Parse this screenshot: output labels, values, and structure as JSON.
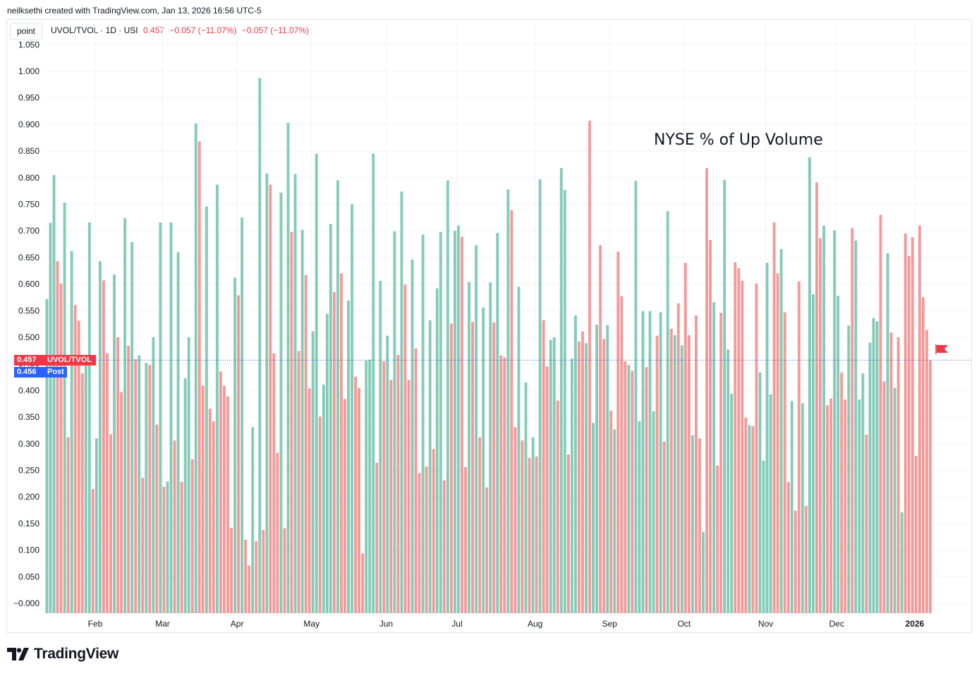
{
  "header": {
    "creator_line": "neilksethi created with TradingView.com, Jan 13, 2026 16:56 UTC-5"
  },
  "toolbar": {
    "mode_button": "point"
  },
  "legend": {
    "symbol": "UVOL/TVOL · 1D · USI",
    "last": "0.457",
    "change": "−0.057 (−11.07%)",
    "change2": "−0.057 (−11.07%)"
  },
  "tags": {
    "last_value": "0.457",
    "last_name": "UVOL/TVOL",
    "post_value": "0.456",
    "post_name": "Post"
  },
  "logo": {
    "text": "TradingView"
  },
  "colors": {
    "up": "#84cbb8",
    "down": "#f49a9a",
    "accent_red": "#f23645",
    "accent_blue": "#2962ff"
  },
  "chart_data": {
    "type": "bar",
    "title": "NYSE % of Up Volume",
    "ylim": [
      -0.012,
      1.055
    ],
    "yticks": [
      "1.050",
      "1.000",
      "0.950",
      "0.900",
      "0.850",
      "0.800",
      "0.750",
      "0.700",
      "0.650",
      "0.600",
      "0.550",
      "0.500",
      "0.450",
      "0.400",
      "0.350",
      "0.300",
      "0.250",
      "0.200",
      "0.150",
      "0.100",
      "0.050",
      "−0.000"
    ],
    "ytick_values": [
      1.05,
      1.0,
      0.95,
      0.9,
      0.85,
      0.8,
      0.75,
      0.7,
      0.65,
      0.6,
      0.55,
      0.5,
      0.45,
      0.4,
      0.35,
      0.3,
      0.25,
      0.2,
      0.15,
      0.1,
      0.05,
      0.0
    ],
    "months": [
      {
        "label": "Feb",
        "index": 14
      },
      {
        "label": "Mar",
        "index": 33
      },
      {
        "label": "Apr",
        "index": 54
      },
      {
        "label": "May",
        "index": 75
      },
      {
        "label": "Jun",
        "index": 96
      },
      {
        "label": "Jul",
        "index": 116
      },
      {
        "label": "Aug",
        "index": 138
      },
      {
        "label": "Sep",
        "index": 159
      },
      {
        "label": "Oct",
        "index": 180
      },
      {
        "label": "Nov",
        "index": 203
      },
      {
        "label": "Dec",
        "index": 223
      },
      {
        "label": "2026",
        "index": 245
      }
    ],
    "current_value": 0.457,
    "post_value": 0.456,
    "values": [
      0.572,
      0.715,
      0.805,
      0.643,
      0.601,
      0.753,
      0.312,
      0.662,
      0.561,
      0.531,
      0.432,
      0.447,
      0.716,
      0.215,
      0.31,
      0.643,
      0.607,
      0.47,
      0.318,
      0.618,
      0.5,
      0.397,
      0.724,
      0.484,
      0.679,
      0.459,
      0.466,
      0.236,
      0.452,
      0.448,
      0.5,
      0.336,
      0.716,
      0.219,
      0.229,
      0.716,
      0.306,
      0.66,
      0.228,
      0.423,
      0.5,
      0.271,
      0.902,
      0.868,
      0.409,
      0.746,
      0.366,
      0.342,
      0.787,
      0.436,
      0.409,
      0.389,
      0.142,
      0.612,
      0.579,
      0.725,
      0.12,
      0.071,
      0.331,
      0.117,
      0.987,
      0.138,
      0.808,
      0.787,
      0.47,
      0.283,
      0.772,
      0.141,
      0.903,
      0.698,
      0.807,
      0.474,
      0.702,
      0.617,
      0.404,
      0.511,
      0.845,
      0.351,
      0.411,
      0.544,
      0.713,
      0.585,
      0.795,
      0.62,
      0.384,
      0.569,
      0.75,
      0.426,
      0.405,
      0.094,
      0.456,
      0.458,
      0.845,
      0.264,
      0.606,
      0.455,
      0.503,
      0.42,
      0.699,
      0.467,
      0.774,
      0.599,
      0.42,
      0.646,
      0.479,
      0.245,
      0.693,
      0.257,
      0.532,
      0.29,
      0.592,
      0.698,
      0.231,
      0.795,
      0.526,
      0.7,
      0.71,
      0.689,
      0.256,
      0.604,
      0.529,
      0.673,
      0.312,
      0.556,
      0.218,
      0.603,
      0.528,
      0.696,
      0.466,
      0.462,
      0.778,
      0.739,
      0.331,
      0.595,
      0.306,
      0.415,
      0.273,
      0.312,
      0.276,
      0.797,
      0.532,
      0.445,
      0.495,
      0.5,
      0.381,
      0.818,
      0.777,
      0.28,
      0.46,
      0.541,
      0.492,
      0.511,
      0.489,
      0.907,
      0.339,
      0.524,
      0.673,
      0.497,
      0.523,
      0.362,
      0.327,
      0.661,
      0.577,
      0.455,
      0.448,
      0.437,
      0.794,
      0.342,
      0.549,
      0.444,
      0.549,
      0.361,
      0.503,
      0.547,
      0.304,
      0.737,
      0.516,
      0.504,
      0.564,
      0.485,
      0.64,
      0.504,
      0.316,
      0.541,
      0.31,
      0.134,
      0.818,
      0.683,
      0.566,
      0.259,
      0.546,
      0.796,
      0.477,
      0.394,
      0.641,
      0.63,
      0.606,
      0.349,
      0.335,
      0.333,
      0.601,
      0.434,
      0.268,
      0.64,
      0.393,
      0.716,
      0.62,
      0.666,
      0.547,
      0.228,
      0.38,
      0.174,
      0.605,
      0.376,
      0.183,
      0.838,
      0.581,
      0.791,
      0.686,
      0.71,
      0.372,
      0.385,
      0.701,
      0.578,
      0.434,
      0.383,
      0.522,
      0.705,
      0.682,
      0.383,
      0.432,
      0.317,
      0.49,
      0.536,
      0.53,
      0.73,
      0.417,
      0.658,
      0.509,
      0.405,
      0.5,
      0.171,
      0.695,
      0.653,
      0.688,
      0.277,
      0.71,
      0.575,
      0.514,
      0.457
    ],
    "colors": [
      "up",
      "up",
      "up",
      "down",
      "down",
      "up",
      "down",
      "up",
      "down",
      "down",
      "down",
      "up",
      "up",
      "down",
      "up",
      "up",
      "down",
      "down",
      "down",
      "up",
      "down",
      "down",
      "up",
      "down",
      "up",
      "down",
      "up",
      "down",
      "up",
      "down",
      "up",
      "down",
      "up",
      "down",
      "up",
      "up",
      "down",
      "up",
      "down",
      "up",
      "up",
      "down",
      "up",
      "down",
      "down",
      "up",
      "down",
      "down",
      "up",
      "down",
      "down",
      "down",
      "down",
      "up",
      "down",
      "up",
      "down",
      "down",
      "up",
      "down",
      "up",
      "down",
      "up",
      "down",
      "down",
      "down",
      "up",
      "down",
      "up",
      "down",
      "up",
      "down",
      "up",
      "down",
      "down",
      "up",
      "up",
      "down",
      "up",
      "up",
      "up",
      "down",
      "up",
      "down",
      "down",
      "up",
      "up",
      "down",
      "down",
      "down",
      "up",
      "up",
      "up",
      "down",
      "up",
      "down",
      "up",
      "down",
      "up",
      "down",
      "up",
      "down",
      "down",
      "up",
      "down",
      "down",
      "up",
      "down",
      "up",
      "down",
      "up",
      "up",
      "down",
      "up",
      "down",
      "up",
      "up",
      "down",
      "down",
      "up",
      "down",
      "up",
      "down",
      "up",
      "down",
      "up",
      "down",
      "up",
      "down",
      "down",
      "up",
      "down",
      "down",
      "up",
      "down",
      "up",
      "down",
      "up",
      "down",
      "up",
      "down",
      "down",
      "up",
      "up",
      "down",
      "up",
      "up",
      "down",
      "up",
      "up",
      "down",
      "down",
      "up",
      "down",
      "up",
      "up",
      "down",
      "down",
      "up",
      "down",
      "up",
      "down",
      "down",
      "down",
      "up",
      "down",
      "up",
      "up",
      "up",
      "down",
      "up",
      "up",
      "down",
      "up",
      "down",
      "up",
      "down",
      "up",
      "down",
      "up",
      "down",
      "down",
      "up",
      "down",
      "down",
      "up",
      "down",
      "down",
      "up",
      "down",
      "down",
      "up",
      "up",
      "up",
      "down",
      "down",
      "down",
      "down",
      "up",
      "down",
      "down",
      "up",
      "up",
      "up",
      "up",
      "down",
      "down",
      "up",
      "down",
      "down",
      "up",
      "down",
      "down",
      "up",
      "down",
      "up",
      "up",
      "down",
      "down",
      "up",
      "down",
      "down",
      "up",
      "up",
      "down",
      "down",
      "up",
      "down",
      "up",
      "up",
      "up",
      "down",
      "up",
      "up",
      "up",
      "down",
      "down",
      "up",
      "down",
      "up",
      "down",
      "up",
      "down",
      "down",
      "down"
    ]
  }
}
